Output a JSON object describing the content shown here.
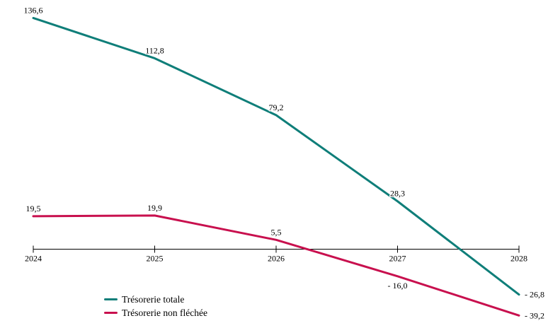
{
  "chart_data": {
    "type": "line",
    "x": [
      "2024",
      "2025",
      "2026",
      "2027",
      "2028"
    ],
    "series": [
      {
        "name": "Trésorerie totale",
        "color": "#0F7E79",
        "values": [
          136.6,
          112.8,
          79.2,
          28.3,
          -26.8
        ],
        "point_labels": [
          "136,6",
          "112,8",
          "79,2",
          "28,3",
          "- 26,8"
        ]
      },
      {
        "name": "Trésorerie non fléchée",
        "color": "#C8104E",
        "values": [
          19.5,
          19.9,
          5.5,
          -16.0,
          -39.2
        ],
        "point_labels": [
          "19,5",
          "19,9",
          "5,5",
          "- 16,0",
          "- 39,2"
        ]
      }
    ],
    "title": "",
    "xlabel": "",
    "ylabel": "",
    "ylim": [
      -45,
      145
    ],
    "grid": false,
    "axis_color": "#000000",
    "data_label_color": "#000000",
    "legend_position": "bottom-left"
  }
}
